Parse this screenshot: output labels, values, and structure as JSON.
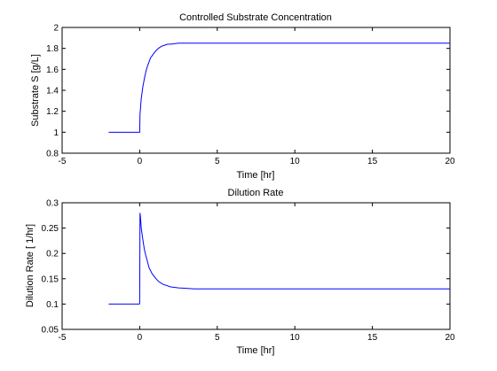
{
  "colors": {
    "line": "#0000ff",
    "axes": "#000000",
    "background": "#ffffff"
  },
  "chart_data": [
    {
      "type": "line",
      "title": "Controlled Substrate Concentration",
      "xlabel": "Time [hr]",
      "ylabel": "Substrate S [g/L]",
      "xlim": [
        -5,
        20
      ],
      "ylim": [
        0.8,
        2
      ],
      "xticks": [
        -5,
        0,
        5,
        10,
        15,
        20
      ],
      "yticks": [
        0.8,
        1,
        1.2,
        1.4,
        1.6,
        1.8,
        2
      ],
      "grid": false,
      "legend": "none",
      "series": [
        {
          "x": [
            -2,
            -1.5,
            -1,
            -0.5,
            0,
            0.02,
            0.1,
            0.2,
            0.3,
            0.4,
            0.5,
            0.6,
            0.7,
            0.8,
            0.9,
            1.0,
            1.2,
            1.4,
            1.6,
            1.8,
            2.0,
            2.5,
            3.0,
            3.5,
            4.0,
            5,
            10,
            15,
            20
          ],
          "y": [
            1.0,
            1.0,
            1.0,
            1.0,
            1.0,
            1.17,
            1.32,
            1.43,
            1.51,
            1.58,
            1.63,
            1.67,
            1.71,
            1.73,
            1.75,
            1.77,
            1.8,
            1.82,
            1.83,
            1.84,
            1.84,
            1.85,
            1.85,
            1.85,
            1.85,
            1.85,
            1.85,
            1.85,
            1.85
          ]
        }
      ]
    },
    {
      "type": "line",
      "title": "Dilution Rate",
      "xlabel": "Time [hr]",
      "ylabel": "Dilution Rate [ 1/hr]",
      "xlim": [
        -5,
        20
      ],
      "ylim": [
        0.05,
        0.3
      ],
      "xticks": [
        -5,
        0,
        5,
        10,
        15,
        20
      ],
      "yticks": [
        0.05,
        0.1,
        0.15,
        0.2,
        0.25,
        0.3
      ],
      "grid": false,
      "legend": "none",
      "series": [
        {
          "x": [
            -2,
            -1.5,
            -1,
            -0.5,
            -0.02,
            0,
            0.02,
            0.05,
            0.1,
            0.2,
            0.3,
            0.4,
            0.5,
            0.6,
            0.8,
            1.0,
            1.2,
            1.5,
            2.0,
            2.5,
            3.0,
            3.5,
            4.0,
            5,
            10,
            15,
            20
          ],
          "y": [
            0.1,
            0.1,
            0.1,
            0.1,
            0.1,
            0.102,
            0.28,
            0.272,
            0.25,
            0.228,
            0.208,
            0.195,
            0.184,
            0.172,
            0.16,
            0.152,
            0.145,
            0.139,
            0.134,
            0.132,
            0.131,
            0.13,
            0.13,
            0.13,
            0.13,
            0.13,
            0.13
          ]
        }
      ]
    }
  ]
}
